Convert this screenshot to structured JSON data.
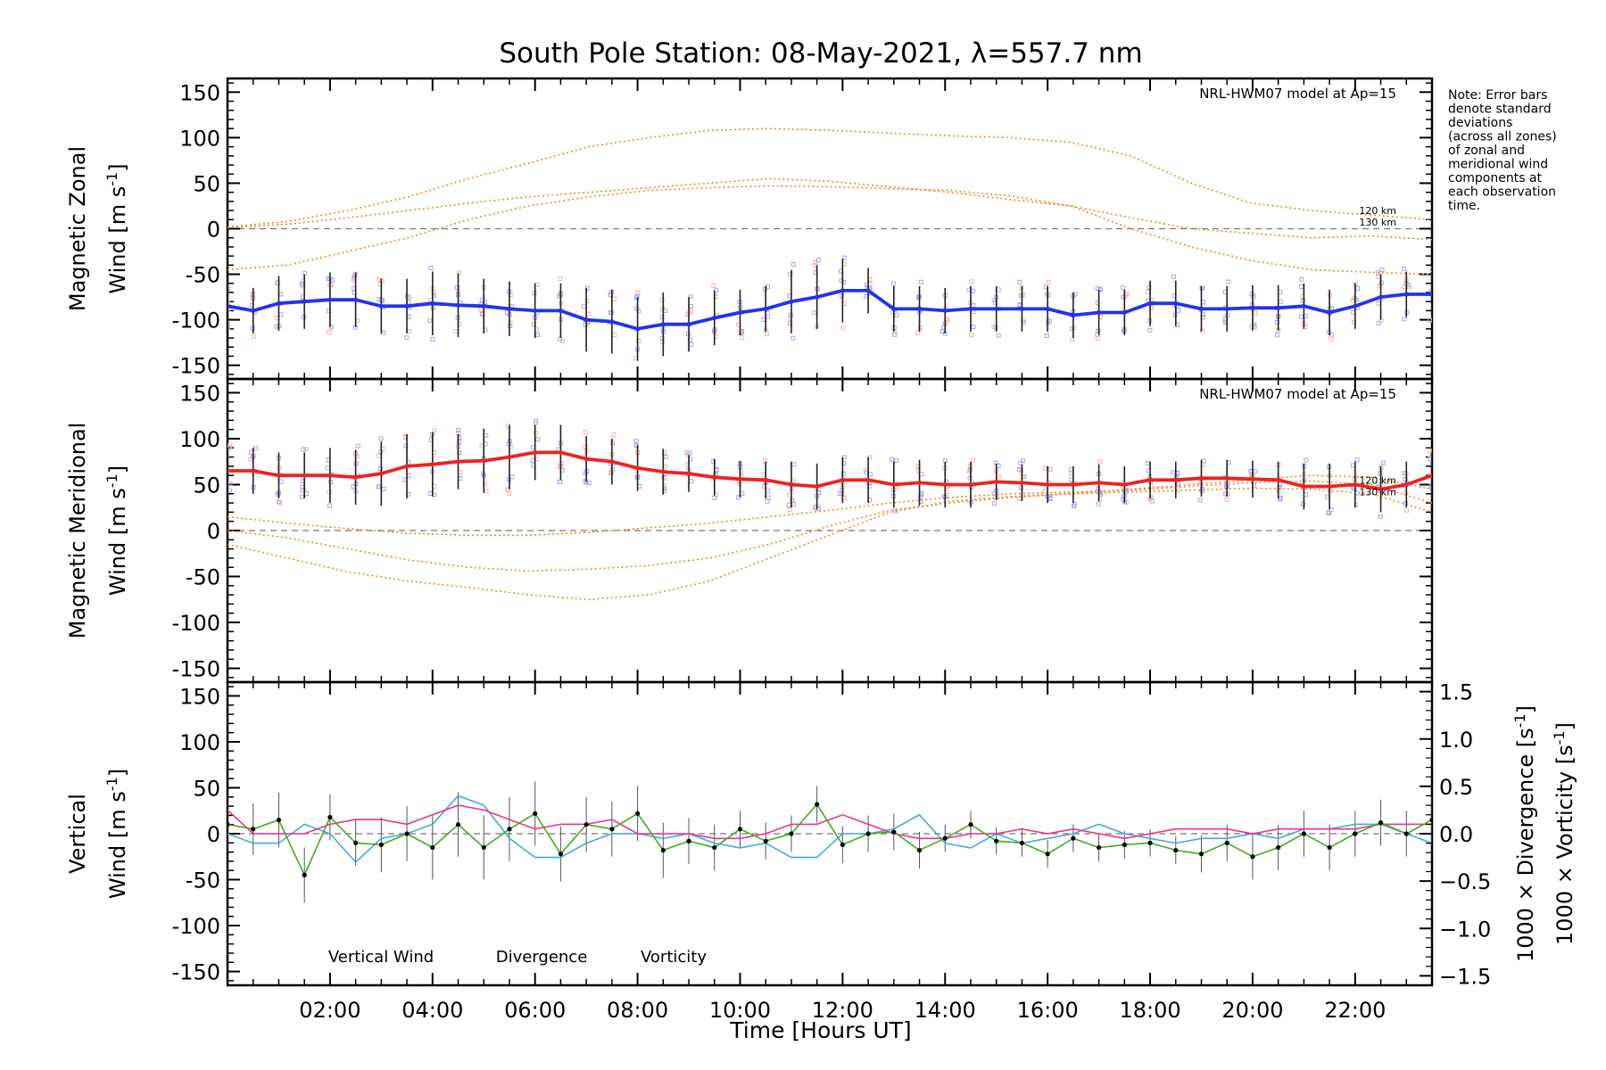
{
  "title": "South Pole Station: 08-May-2021, λ=557.7 nm",
  "note_lines": [
    "Note: Error bars",
    "denote standard",
    "deviations",
    "(across all zones)",
    "of zonal and",
    "meridional wind",
    "components at",
    "each observation",
    "time."
  ],
  "x_axis": {
    "label": "Time [Hours UT]",
    "range": [
      0,
      23.5
    ],
    "ticks": [
      {
        "v": 2,
        "label": "02:00"
      },
      {
        "v": 4,
        "label": "04:00"
      },
      {
        "v": 6,
        "label": "06:00"
      },
      {
        "v": 8,
        "label": "08:00"
      },
      {
        "v": 10,
        "label": "10:00"
      },
      {
        "v": 12,
        "label": "12:00"
      },
      {
        "v": 14,
        "label": "14:00"
      },
      {
        "v": 16,
        "label": "16:00"
      },
      {
        "v": 18,
        "label": "18:00"
      },
      {
        "v": 20,
        "label": "20:00"
      },
      {
        "v": 22,
        "label": "22:00"
      }
    ]
  },
  "colors": {
    "zonal": "#2233ee",
    "meridional": "#ee2222",
    "vertical": "#44aa22",
    "divergence": "#44aadd",
    "vorticity": "#ee3388",
    "model": "#ee8833",
    "errorbar": "#222222",
    "scatter": "#a8a8e8",
    "scatter_warm": "#f3b7a3"
  },
  "chart_data": [
    {
      "id": "zonal",
      "type": "line",
      "ylabel_line1": "Magnetic Zonal",
      "ylabel_line2": "Wind [m s",
      "ylabel_sup": "-1",
      "ylabel_end": "]",
      "ylim": [
        -165,
        165
      ],
      "yticks": [
        -150,
        -100,
        -50,
        0,
        50,
        100,
        150
      ],
      "model_label": "NRL-HWM07 model at Ap=15",
      "model_alt_labels": [
        "120 km",
        "130 km"
      ],
      "x": [
        0.0,
        0.5,
        1.0,
        1.5,
        2.0,
        2.5,
        3.0,
        3.5,
        4.0,
        4.5,
        5.0,
        5.5,
        6.0,
        6.5,
        7.0,
        7.5,
        8.0,
        8.5,
        9.0,
        9.5,
        10.0,
        10.5,
        11.0,
        11.5,
        12.0,
        12.5,
        13.0,
        13.5,
        14.0,
        14.5,
        15.0,
        15.5,
        16.0,
        16.5,
        17.0,
        17.5,
        18.0,
        18.5,
        19.0,
        19.5,
        20.0,
        20.5,
        21.0,
        21.5,
        22.0,
        22.5,
        23.0,
        23.5
      ],
      "values": [
        -85,
        -90,
        -82,
        -80,
        -78,
        -78,
        -85,
        -85,
        -82,
        -84,
        -85,
        -88,
        -90,
        -90,
        -100,
        -102,
        -110,
        -105,
        -105,
        -98,
        -92,
        -88,
        -80,
        -75,
        -68,
        -68,
        -88,
        -88,
        -90,
        -88,
        -88,
        -88,
        -88,
        -95,
        -92,
        -92,
        -82,
        -82,
        -88,
        -88,
        -87,
        -87,
        -85,
        -92,
        -85,
        -75,
        -72,
        -72
      ],
      "errors": [
        25,
        25,
        30,
        30,
        30,
        30,
        30,
        30,
        35,
        35,
        30,
        30,
        30,
        30,
        35,
        35,
        35,
        35,
        30,
        30,
        25,
        25,
        35,
        35,
        35,
        25,
        25,
        25,
        25,
        25,
        25,
        25,
        25,
        25,
        25,
        25,
        25,
        25,
        25,
        25,
        25,
        25,
        25,
        25,
        25,
        25,
        25,
        25
      ],
      "models": [
        [
          2,
          8,
          20,
          35,
          55,
          72,
          90,
          100,
          108,
          110,
          108,
          105,
          102,
          100,
          95,
          80,
          50,
          28,
          20,
          15,
          10
        ],
        [
          1,
          5,
          12,
          20,
          28,
          35,
          40,
          45,
          50,
          55,
          52,
          46,
          40,
          32,
          25,
          12,
          0,
          -5,
          -10,
          -8,
          -12
        ],
        [
          -45,
          -40,
          -25,
          -10,
          10,
          25,
          35,
          42,
          45,
          47,
          46,
          44,
          42,
          36,
          25,
          0,
          -20,
          -35,
          -45,
          -48,
          -50
        ]
      ]
    },
    {
      "id": "meridional",
      "type": "line",
      "ylabel_line1": "Magnetic Meridional",
      "ylabel_line2": "Wind [m s",
      "ylabel_sup": "-1",
      "ylabel_end": "]",
      "ylim": [
        -165,
        165
      ],
      "yticks": [
        -150,
        -100,
        -50,
        0,
        50,
        100,
        150
      ],
      "model_label": "NRL-HWM07 model at Ap=15",
      "model_alt_labels": [
        "120 km",
        "130 km"
      ],
      "x": [
        0.0,
        0.5,
        1.0,
        1.5,
        2.0,
        2.5,
        3.0,
        3.5,
        4.0,
        4.5,
        5.0,
        5.5,
        6.0,
        6.5,
        7.0,
        7.5,
        8.0,
        8.5,
        9.0,
        9.5,
        10.0,
        10.5,
        11.0,
        11.5,
        12.0,
        12.5,
        13.0,
        13.5,
        14.0,
        14.5,
        15.0,
        15.5,
        16.0,
        16.5,
        17.0,
        17.5,
        18.0,
        18.5,
        19.0,
        19.5,
        20.0,
        20.5,
        21.0,
        21.5,
        22.0,
        22.5,
        23.0,
        23.5
      ],
      "values": [
        65,
        65,
        60,
        60,
        60,
        58,
        62,
        70,
        72,
        75,
        76,
        80,
        85,
        85,
        78,
        75,
        68,
        64,
        62,
        58,
        56,
        55,
        50,
        48,
        55,
        55,
        50,
        52,
        50,
        50,
        53,
        52,
        50,
        50,
        52,
        50,
        55,
        55,
        57,
        57,
        56,
        55,
        48,
        48,
        50,
        45,
        50,
        60
      ],
      "errors": [
        25,
        25,
        25,
        25,
        30,
        30,
        35,
        35,
        35,
        30,
        35,
        35,
        30,
        30,
        25,
        25,
        25,
        25,
        20,
        20,
        20,
        20,
        25,
        25,
        25,
        25,
        25,
        25,
        25,
        25,
        20,
        20,
        20,
        20,
        20,
        20,
        20,
        20,
        20,
        20,
        20,
        20,
        25,
        25,
        25,
        25,
        25,
        25
      ],
      "models": [
        [
          15,
          8,
          2,
          -3,
          -5,
          -5,
          -2,
          3,
          8,
          15,
          22,
          30,
          36,
          40,
          42,
          44,
          48,
          52,
          54,
          50,
          30
        ],
        [
          -15,
          -30,
          -45,
          -55,
          -62,
          -70,
          -75,
          -70,
          -55,
          -30,
          -5,
          20,
          32,
          37,
          40,
          45,
          50,
          55,
          60,
          58,
          45
        ],
        [
          0,
          -8,
          -20,
          -32,
          -40,
          -44,
          -42,
          -38,
          -30,
          -15,
          5,
          22,
          30,
          36,
          40,
          42,
          44,
          46,
          45,
          40,
          20
        ]
      ]
    },
    {
      "id": "vertical",
      "type": "line",
      "ylabel_line1": "Vertical",
      "ylabel_line2": "Wind [m s",
      "ylabel_sup": "-1",
      "ylabel_end": "]",
      "ylim": [
        -165,
        165
      ],
      "yticks": [
        -150,
        -100,
        -50,
        0,
        50,
        100,
        150
      ],
      "right_axis": {
        "ylim": [
          -1.6,
          1.6
        ],
        "yticks": [
          -1.5,
          -1.0,
          -0.5,
          0.0,
          0.5,
          1.0,
          1.5
        ],
        "tick_labels": [
          "−1.5",
          "−1.0",
          "−0.5",
          "0.0",
          "0.5",
          "1.0",
          "1.5"
        ]
      },
      "right_label_1": "1000 × Divergence [s",
      "right_label_2": "1000 × Vorticity [s",
      "right_sup": "-1",
      "right_end": "]",
      "legend": [
        "Vertical Wind",
        "Divergence",
        "Vorticity"
      ],
      "x": [
        0.0,
        0.5,
        1.0,
        1.5,
        2.0,
        2.5,
        3.0,
        3.5,
        4.0,
        4.5,
        5.0,
        5.5,
        6.0,
        6.5,
        7.0,
        7.5,
        8.0,
        8.5,
        9.0,
        9.5,
        10.0,
        10.5,
        11.0,
        11.5,
        12.0,
        12.5,
        13.0,
        13.5,
        14.0,
        14.5,
        15.0,
        15.5,
        16.0,
        16.5,
        17.0,
        17.5,
        18.0,
        18.5,
        19.0,
        19.5,
        20.0,
        20.5,
        21.0,
        21.5,
        22.0,
        22.5,
        23.0,
        23.5
      ],
      "values": [
        10,
        5,
        15,
        -45,
        18,
        -10,
        -12,
        0,
        -15,
        10,
        -15,
        5,
        22,
        -22,
        10,
        5,
        22,
        -18,
        -8,
        -15,
        5,
        -8,
        0,
        32,
        -12,
        0,
        2,
        -18,
        -5,
        10,
        -8,
        -10,
        -22,
        -5,
        -15,
        -12,
        -10,
        -18,
        -22,
        -10,
        -25,
        -15,
        0,
        -15,
        0,
        12,
        0,
        15
      ],
      "errors": [
        30,
        28,
        30,
        30,
        25,
        25,
        30,
        30,
        35,
        35,
        35,
        35,
        35,
        30,
        30,
        30,
        30,
        30,
        25,
        25,
        20,
        20,
        20,
        20,
        20,
        20,
        20,
        20,
        15,
        15,
        15,
        15,
        15,
        15,
        15,
        15,
        15,
        15,
        20,
        20,
        25,
        25,
        25,
        25,
        25,
        25,
        25,
        25
      ],
      "divergence": [
        0.0,
        -0.1,
        -0.1,
        0.1,
        0.0,
        -0.3,
        -0.05,
        0.0,
        0.1,
        0.4,
        0.3,
        -0.05,
        -0.25,
        -0.25,
        -0.1,
        0.0,
        0.0,
        -0.05,
        0.0,
        -0.1,
        -0.15,
        -0.1,
        -0.25,
        -0.25,
        0.0,
        0.0,
        0.05,
        0.2,
        -0.1,
        -0.15,
        0.0,
        -0.1,
        -0.05,
        0.0,
        0.1,
        0.0,
        -0.05,
        -0.1,
        -0.05,
        -0.05,
        0.0,
        -0.05,
        0.05,
        0.05,
        0.1,
        0.1,
        0.0,
        -0.1
      ],
      "vorticity": [
        0.25,
        0.0,
        0.0,
        0.0,
        0.1,
        0.15,
        0.15,
        0.1,
        0.2,
        0.3,
        0.25,
        0.15,
        0.05,
        0.1,
        0.1,
        0.15,
        0.0,
        0.0,
        0.0,
        -0.05,
        -0.05,
        0.0,
        0.1,
        0.1,
        0.2,
        0.1,
        0.0,
        -0.05,
        -0.05,
        0.0,
        0.0,
        0.05,
        0.0,
        0.05,
        0.0,
        -0.05,
        0.0,
        0.05,
        0.05,
        0.05,
        0.0,
        0.05,
        0.05,
        0.05,
        0.05,
        0.1,
        0.1,
        0.1
      ]
    }
  ]
}
